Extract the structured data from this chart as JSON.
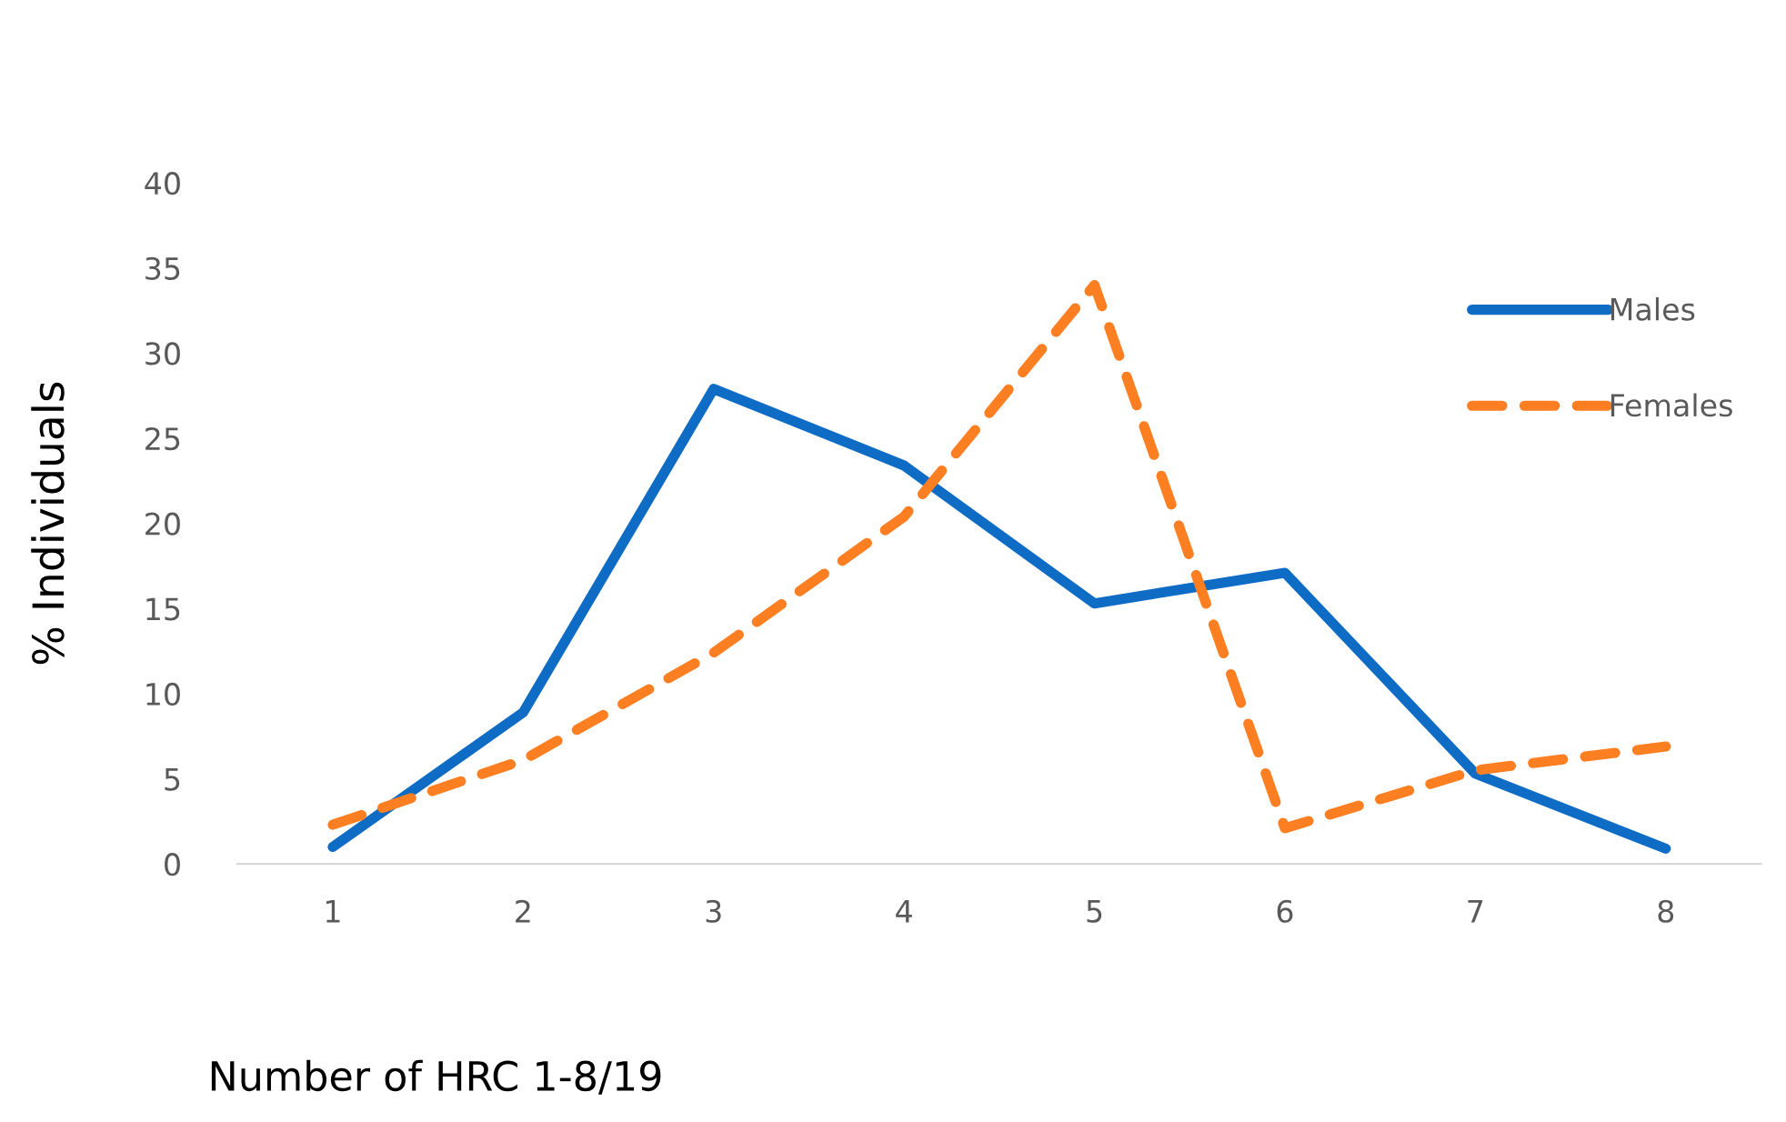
{
  "chart_data": {
    "type": "line",
    "xlabel": "Number of HRC 1-8/19",
    "ylabel": "% Individuals",
    "categories": [
      "1",
      "2",
      "3",
      "4",
      "5",
      "6",
      "7",
      "8"
    ],
    "series": [
      {
        "name": "Males",
        "color": "#0f6cc4",
        "line_style": "solid",
        "values": [
          1.0,
          8.9,
          27.9,
          23.4,
          15.3,
          17.1,
          5.3,
          0.9
        ]
      },
      {
        "name": "Females",
        "color": "#fd7f22",
        "line_style": "dashed",
        "values": [
          2.3,
          6.1,
          12.4,
          20.4,
          34.0,
          2.1,
          5.5,
          6.9
        ]
      }
    ],
    "ylim": [
      0,
      40
    ],
    "yticks": [
      0,
      5,
      10,
      15,
      20,
      25,
      30,
      35,
      40
    ],
    "grid": false,
    "legend": "right",
    "marker": "none"
  }
}
